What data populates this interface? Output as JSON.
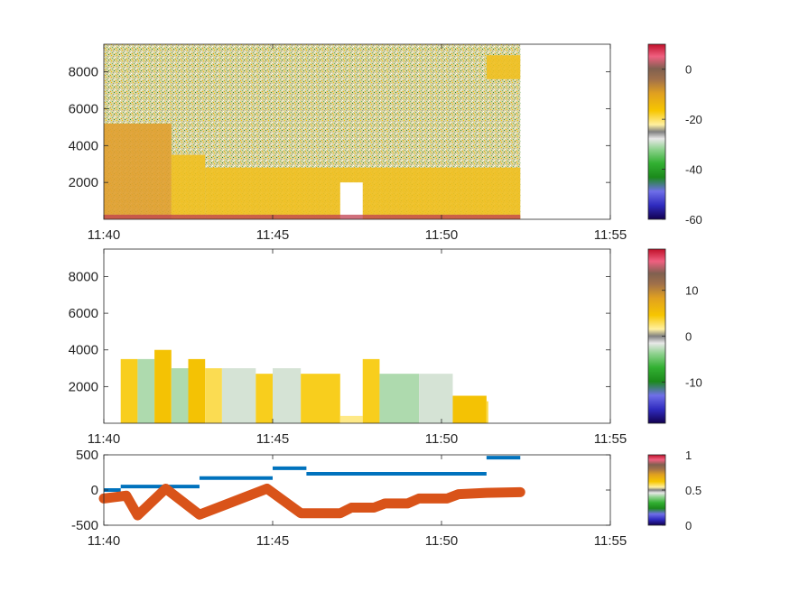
{
  "chart_data": [
    {
      "type": "heatmap",
      "x_ticks": [
        "11:40",
        "11:45",
        "11:50",
        "11:55"
      ],
      "y_ticks": [
        2000,
        4000,
        6000,
        8000
      ],
      "xlim": [
        "11:40",
        "11:55"
      ],
      "ylim": [
        0,
        9500
      ],
      "data_extent": {
        "x_end": "11:52:20",
        "y_top": 9500
      },
      "colorbar": {
        "ticks": [
          0,
          -20,
          -40,
          -60
        ],
        "range": [
          -60,
          10
        ]
      },
      "regions": [
        {
          "x": [
            "11:40",
            "11:42:00"
          ],
          "y": [
            0,
            5200
          ],
          "level": "high"
        },
        {
          "x": [
            "11:42:00",
            "11:43:00"
          ],
          "y": [
            0,
            3500
          ],
          "level": "mid"
        },
        {
          "x": [
            "11:43:00",
            "11:52:20"
          ],
          "y": [
            0,
            2800
          ],
          "level": "mid"
        },
        {
          "x": [
            "11:47:00",
            "11:47:40"
          ],
          "y": [
            0,
            2000
          ],
          "level": "low"
        },
        {
          "x": [
            "11:51:20",
            "11:52:20"
          ],
          "y": [
            7600,
            8900
          ],
          "level": "mid"
        }
      ]
    },
    {
      "type": "heatmap",
      "x_ticks": [
        "11:40",
        "11:45",
        "11:50",
        "11:55"
      ],
      "y_ticks": [
        2000,
        4000,
        6000,
        8000
      ],
      "xlim": [
        "11:40",
        "11:55"
      ],
      "ylim": [
        0,
        9500
      ],
      "colorbar": {
        "ticks": [
          10,
          0,
          -10
        ],
        "range": [
          -19,
          19
        ]
      },
      "blocks": [
        {
          "x": [
            "11:40:30",
            "11:41:00"
          ],
          "y": [
            0,
            3500
          ],
          "value": 4
        },
        {
          "x": [
            "11:41:00",
            "11:41:30"
          ],
          "y": [
            0,
            3500
          ],
          "value": -3
        },
        {
          "x": [
            "11:41:30",
            "11:42:00"
          ],
          "y": [
            0,
            4000
          ],
          "value": 5
        },
        {
          "x": [
            "11:42:00",
            "11:42:30"
          ],
          "y": [
            0,
            3000
          ],
          "value": -3
        },
        {
          "x": [
            "11:42:30",
            "11:43:00"
          ],
          "y": [
            0,
            3500
          ],
          "value": 5
        },
        {
          "x": [
            "11:43:00",
            "11:43:30"
          ],
          "y": [
            0,
            3000
          ],
          "value": 3
        },
        {
          "x": [
            "11:43:30",
            "11:44:30"
          ],
          "y": [
            0,
            3000
          ],
          "value": -2
        },
        {
          "x": [
            "11:44:30",
            "11:45:00"
          ],
          "y": [
            0,
            2700
          ],
          "value": 4
        },
        {
          "x": [
            "11:45:00",
            "11:45:50"
          ],
          "y": [
            0,
            3000
          ],
          "value": -2
        },
        {
          "x": [
            "11:45:50",
            "11:47:00"
          ],
          "y": [
            0,
            2700
          ],
          "value": 4
        },
        {
          "x": [
            "11:47:00",
            "11:47:40"
          ],
          "y": [
            0,
            400
          ],
          "value": 2
        },
        {
          "x": [
            "11:47:40",
            "11:48:10"
          ],
          "y": [
            0,
            3500
          ],
          "value": 4
        },
        {
          "x": [
            "11:48:10",
            "11:49:20"
          ],
          "y": [
            0,
            2700
          ],
          "value": -3
        },
        {
          "x": [
            "11:49:20",
            "11:50:20"
          ],
          "y": [
            0,
            2700
          ],
          "value": -2
        },
        {
          "x": [
            "11:50:20",
            "11:51:20"
          ],
          "y": [
            0,
            1500
          ],
          "value": 5
        },
        {
          "x": [
            "11:51:20",
            "11:51:20"
          ],
          "y": [
            0,
            1200
          ],
          "value": 3
        }
      ]
    },
    {
      "type": "line",
      "x_ticks": [
        "11:40",
        "11:45",
        "11:50",
        "11:55"
      ],
      "y_ticks": [
        500,
        0,
        -500
      ],
      "xlim": [
        "11:40",
        "11:55"
      ],
      "ylim": [
        -500,
        500
      ],
      "colorbar": {
        "ticks": [
          1,
          0.5,
          0
        ],
        "range": [
          0,
          1
        ]
      },
      "series": [
        {
          "color": "#0072bd",
          "style": "step",
          "segments": [
            {
              "x": [
                "11:40:00",
                "11:40:30"
              ],
              "y": 0
            },
            {
              "x": [
                "11:40:30",
                "11:42:50"
              ],
              "y": 50
            },
            {
              "x": [
                "11:42:50",
                "11:45:00"
              ],
              "y": 170
            },
            {
              "x": [
                "11:45:00",
                "11:46:00"
              ],
              "y": 310
            },
            {
              "x": [
                "11:46:00",
                "11:51:20"
              ],
              "y": 230
            },
            {
              "x": [
                "11:51:20",
                "11:52:20"
              ],
              "y": 460
            }
          ]
        },
        {
          "color": "#d95319",
          "style": "thick",
          "x": [
            "11:40:00",
            "11:40:20",
            "11:40:40",
            "11:41:00",
            "11:41:50",
            "11:42:50",
            "11:44:50",
            "11:45:50",
            "11:47:00",
            "11:47:20",
            "11:48:00",
            "11:48:20",
            "11:49:00",
            "11:49:20",
            "11:50:10",
            "11:50:30",
            "11:51:20",
            "11:52:20"
          ],
          "y": [
            -120,
            -100,
            -80,
            -360,
            20,
            -350,
            20,
            -330,
            -330,
            -250,
            -250,
            -190,
            -190,
            -120,
            -120,
            -60,
            -40,
            -30
          ]
        }
      ]
    }
  ]
}
